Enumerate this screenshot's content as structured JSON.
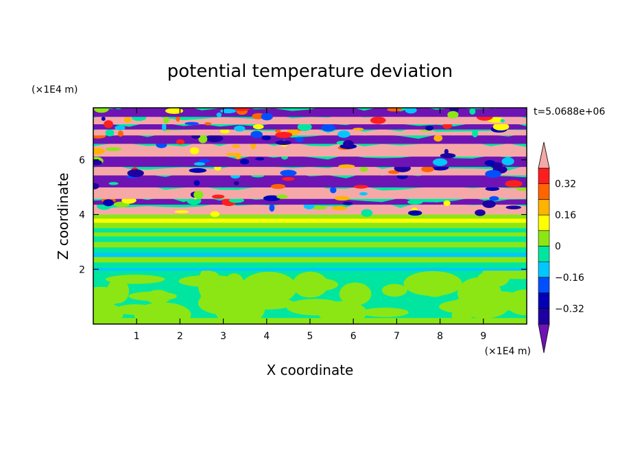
{
  "chart_data": {
    "type": "heatmap",
    "title": "potential temperature deviation",
    "xlabel": "X coordinate",
    "ylabel": "Z coordinate",
    "x_unit": "(×1E4 m)",
    "z_unit": "(×1E4 m)",
    "time_label": "t=5.0688e+06",
    "xlim": [
      0,
      10
    ],
    "zlim": [
      0,
      7.9
    ],
    "x_ticks": [
      1,
      2,
      3,
      4,
      5,
      6,
      7,
      8,
      9
    ],
    "z_ticks": [
      2,
      4,
      6
    ],
    "colorbar": {
      "levels": [
        -0.4,
        -0.32,
        -0.24,
        -0.16,
        -0.08,
        0,
        0.08,
        0.16,
        0.24,
        0.32,
        0.4
      ],
      "labeled_ticks": [
        "0.32",
        "0.16",
        "0",
        "−0.16",
        "−0.32"
      ],
      "labeled_values": [
        0.32,
        0.16,
        0,
        -0.16,
        -0.32
      ],
      "colors": [
        "#1e00a0",
        "#0000b4",
        "#0050ff",
        "#00c8ff",
        "#00e6a0",
        "#8ce614",
        "#ffff00",
        "#ffb400",
        "#ff6400",
        "#ff1e1e"
      ],
      "over_color": "#f6a8a8",
      "under_color": "#6e14b4"
    },
    "regions": [
      {
        "z_range": [
          0,
          0.25
        ],
        "dominant": "0 to 0.08",
        "color": "#8ce614"
      },
      {
        "z_range": [
          0.25,
          2.0
        ],
        "dominant": "-0.08 to 0",
        "color": "#00e6a0"
      },
      {
        "z_range": [
          2.0,
          4.0
        ],
        "dominant": "banded -0.08 to 0.16",
        "color": "#8ce614"
      },
      {
        "z_range": [
          4.0,
          7.9
        ],
        "dominant": "alternating >0.4 and <-0.4",
        "color": "#f6a8a8"
      }
    ]
  }
}
